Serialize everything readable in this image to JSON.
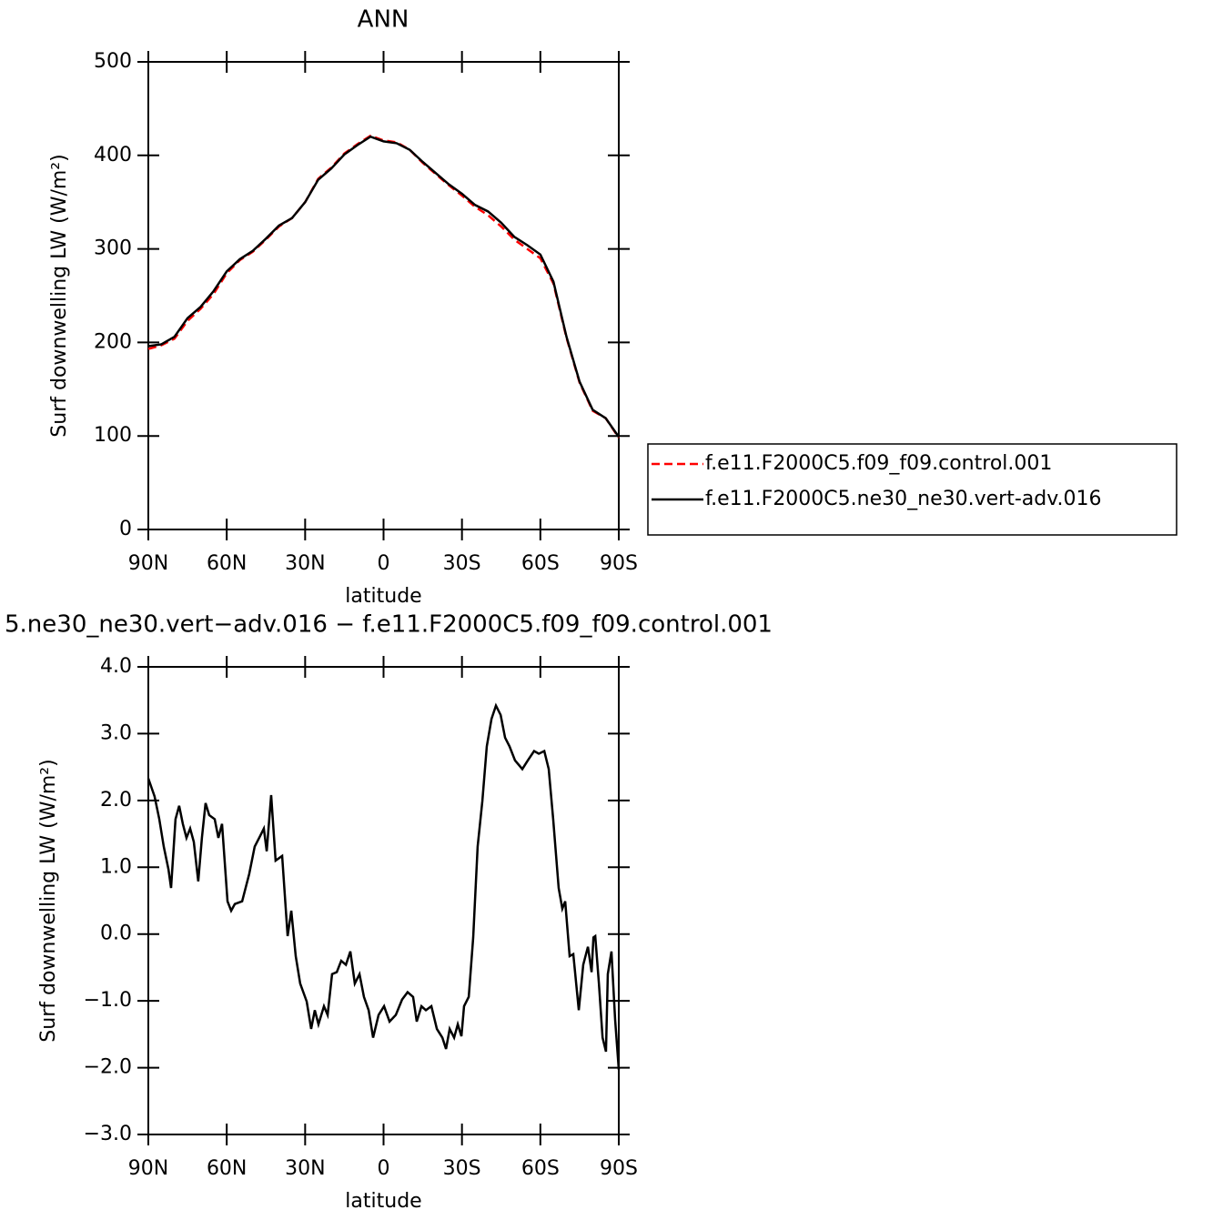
{
  "chart_data": [
    {
      "type": "line",
      "title": "ANN",
      "xlabel": "latitude",
      "ylabel": "Surf downwelling LW (W/m²)",
      "x": [
        90,
        85,
        80,
        75,
        70,
        65,
        60,
        55,
        50,
        45,
        40,
        35,
        30,
        25,
        20,
        15,
        10,
        5,
        0,
        -5,
        -10,
        -15,
        -20,
        -25,
        -30,
        -35,
        -40,
        -45,
        -50,
        -55,
        -60,
        -65,
        -70,
        -75,
        -80,
        -85,
        -90
      ],
      "series": [
        {
          "name": "f.e11.F2000C5.f09_f09.control.001",
          "color": "#ff0000",
          "dash": true,
          "values": [
            193,
            197,
            204,
            223,
            236,
            252,
            274,
            288,
            297,
            310,
            324,
            333,
            350,
            375,
            387,
            402,
            412,
            421,
            416,
            414,
            406,
            392,
            380,
            368,
            357,
            345,
            336,
            324,
            310,
            300,
            290,
            263,
            205,
            157,
            127,
            119,
            98
          ]
        },
        {
          "name": "f.e11.F2000C5.ne30_ne30.vert-adv.016",
          "color": "#000000",
          "dash": false,
          "values": [
            196,
            198,
            206,
            226,
            238,
            255,
            276,
            289,
            298,
            311,
            325,
            333,
            350,
            374,
            386,
            401,
            411,
            420,
            415,
            413,
            406,
            393,
            381,
            369,
            359,
            347,
            340,
            328,
            313,
            304,
            294,
            265,
            206,
            158,
            128,
            119,
            99
          ]
        }
      ],
      "xlim": [
        90,
        -90
      ],
      "xticks": [
        {
          "value": 90,
          "label": "90N"
        },
        {
          "value": 60,
          "label": "60N"
        },
        {
          "value": 30,
          "label": "30N"
        },
        0,
        {
          "value": -30,
          "label": "30S"
        },
        {
          "value": -60,
          "label": "60S"
        },
        {
          "value": -90,
          "label": "90S"
        }
      ],
      "ylim": [
        0,
        500
      ],
      "yticks": [
        0,
        100,
        200,
        300,
        400,
        500
      ],
      "legend": "right"
    },
    {
      "type": "line",
      "title": "5.ne30_ne30.vert−adv.016 − f.e11.F2000C5.f09_f09.control.001",
      "xlabel": "latitude",
      "ylabel": "Surf downwelling LW (W/m²)",
      "x": [
        90,
        87.6,
        85.8,
        84.1,
        82.3,
        81.3,
        79.6,
        78.2,
        76.8,
        75.4,
        74.0,
        72.6,
        70.9,
        69.5,
        68.1,
        66.7,
        64.6,
        63.2,
        61.8,
        59.7,
        58.3,
        56.9,
        54.1,
        51.4,
        49.3,
        47.2,
        45.8,
        44.7,
        43.0,
        41.3,
        38.8,
        36.7,
        35.3,
        33.6,
        31.9,
        29.4,
        27.7,
        26.3,
        24.9,
        22.8,
        21.4,
        19.7,
        17.9,
        16.2,
        14.4,
        12.7,
        11.0,
        9.2,
        7.5,
        5.7,
        4.0,
        1.9,
        -0.2,
        -2.3,
        -4.7,
        -7.1,
        -9.2,
        -11.3,
        -12.7,
        -14.5,
        -16.2,
        -18.3,
        -20.4,
        -22.5,
        -23.9,
        -25.3,
        -27.0,
        -28.4,
        -29.8,
        -30.8,
        -32.6,
        -34.3,
        -36.0,
        -37.8,
        -39.5,
        -41.3,
        -43.0,
        -44.8,
        -46.5,
        -48.2,
        -50.3,
        -53.1,
        -55.2,
        -57.6,
        -59.4,
        -61.5,
        -63.2,
        -64.9,
        -67.0,
        -68.4,
        -69.5,
        -71.2,
        -72.6,
        -74.7,
        -76.4,
        -78.2,
        -79.6,
        -80.3,
        -81.0,
        -82.4,
        -83.8,
        -85.1,
        -85.8,
        -87.2,
        -88.6,
        -90
      ],
      "values": [
        2.33,
        2.06,
        1.72,
        1.31,
        0.97,
        0.69,
        1.72,
        1.92,
        1.65,
        1.44,
        1.58,
        1.38,
        0.79,
        1.44,
        1.96,
        1.78,
        1.72,
        1.44,
        1.65,
        0.49,
        0.35,
        0.45,
        0.49,
        0.9,
        1.31,
        1.47,
        1.58,
        1.24,
        2.08,
        1.1,
        1.17,
        -0.03,
        0.35,
        -0.33,
        -0.74,
        -1.01,
        -1.42,
        -1.14,
        -1.35,
        -1.08,
        -1.21,
        -0.6,
        -0.57,
        -0.4,
        -0.46,
        -0.26,
        -0.74,
        -0.6,
        -0.94,
        -1.14,
        -1.55,
        -1.21,
        -1.08,
        -1.31,
        -1.21,
        -0.98,
        -0.87,
        -0.94,
        -1.31,
        -1.08,
        -1.14,
        -1.08,
        -1.42,
        -1.55,
        -1.72,
        -1.42,
        -1.55,
        -1.35,
        -1.53,
        -1.08,
        -0.94,
        -0.05,
        1.31,
        1.99,
        2.81,
        3.22,
        3.42,
        3.28,
        2.94,
        2.81,
        2.6,
        2.47,
        2.6,
        2.74,
        2.7,
        2.74,
        2.47,
        1.72,
        0.69,
        0.38,
        0.49,
        -0.33,
        -0.3,
        -1.14,
        -0.46,
        -0.19,
        -0.57,
        -0.05,
        -0.03,
        -0.74,
        -1.55,
        -1.76,
        -0.6,
        -0.26,
        -1.28,
        -2.03
      ],
      "color": "#000000",
      "xlim": [
        90,
        -90
      ],
      "xticks": [
        {
          "value": 90,
          "label": "90N"
        },
        {
          "value": 60,
          "label": "60N"
        },
        {
          "value": 30,
          "label": "30N"
        },
        0,
        {
          "value": -30,
          "label": "30S"
        },
        {
          "value": -60,
          "label": "60S"
        },
        {
          "value": -90,
          "label": "90S"
        }
      ],
      "ylim": [
        -3,
        4
      ],
      "yticks": [
        {
          "value": -3,
          "label": "−3.0"
        },
        {
          "value": -2,
          "label": "−2.0"
        },
        {
          "value": -1,
          "label": "−1.0"
        },
        {
          "value": 0,
          "label": "0.0"
        },
        {
          "value": 1,
          "label": "1.0"
        },
        {
          "value": 2,
          "label": "2.0"
        },
        {
          "value": 3,
          "label": "3.0"
        },
        {
          "value": 4,
          "label": "4.0"
        }
      ]
    }
  ]
}
